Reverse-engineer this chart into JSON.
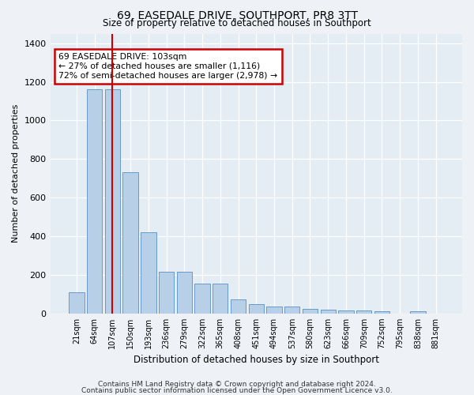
{
  "title1": "69, EASEDALE DRIVE, SOUTHPORT, PR8 3TT",
  "title2": "Size of property relative to detached houses in Southport",
  "xlabel": "Distribution of detached houses by size in Southport",
  "ylabel": "Number of detached properties",
  "categories": [
    "21sqm",
    "64sqm",
    "107sqm",
    "150sqm",
    "193sqm",
    "236sqm",
    "279sqm",
    "322sqm",
    "365sqm",
    "408sqm",
    "451sqm",
    "494sqm",
    "537sqm",
    "580sqm",
    "623sqm",
    "666sqm",
    "709sqm",
    "752sqm",
    "795sqm",
    "838sqm",
    "881sqm"
  ],
  "values": [
    108,
    1160,
    1160,
    730,
    420,
    215,
    215,
    155,
    155,
    72,
    50,
    35,
    35,
    22,
    18,
    15,
    15,
    13,
    0,
    13,
    0
  ],
  "bar_color": "#b8cfe8",
  "bar_edge_color": "#6699cc",
  "vline_x_index": 2,
  "vline_color": "#cc0000",
  "annotation_line1": "69 EASEDALE DRIVE: 103sqm",
  "annotation_line2": "← 27% of detached houses are smaller (1,116)",
  "annotation_line3": "72% of semi-detached houses are larger (2,978) →",
  "annotation_box_color": "#cc0000",
  "footnote1": "Contains HM Land Registry data © Crown copyright and database right 2024.",
  "footnote2": "Contains public sector information licensed under the Open Government Licence v3.0.",
  "ylim": [
    0,
    1450
  ],
  "yticks": [
    0,
    200,
    400,
    600,
    800,
    1000,
    1200,
    1400
  ],
  "bg_color": "#eef2f7",
  "plot_bg": "#e4ecf4"
}
